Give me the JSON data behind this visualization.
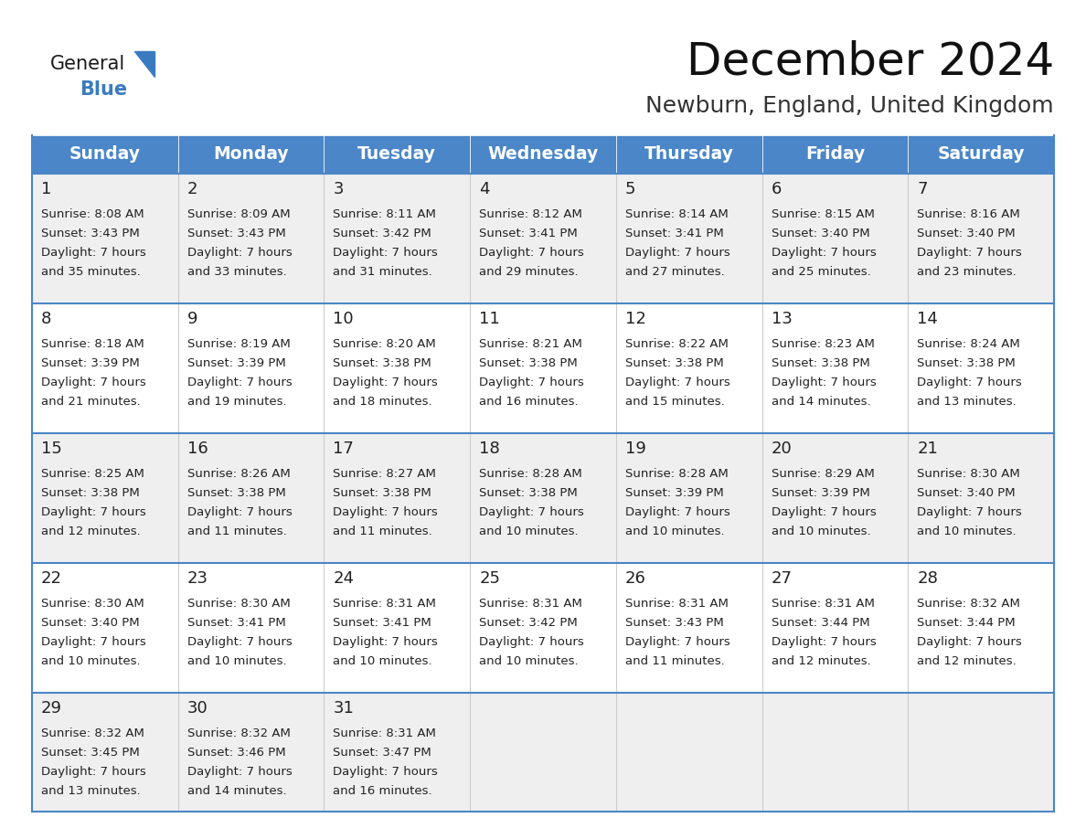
{
  "title": "December 2024",
  "subtitle": "Newburn, England, United Kingdom",
  "header_color": "#4a86c8",
  "header_text_color": "#ffffff",
  "row_bg_light": "#efefef",
  "row_bg_white": "#ffffff",
  "border_color": "#4a86c8",
  "text_color": "#222222",
  "days_of_week": [
    "Sunday",
    "Monday",
    "Tuesday",
    "Wednesday",
    "Thursday",
    "Friday",
    "Saturday"
  ],
  "logo_color1": "#1a1a1a",
  "logo_color2": "#3a7bbf",
  "calendar_data": [
    [
      {
        "day": 1,
        "sunrise": "8:08 AM",
        "sunset": "3:43 PM",
        "daylight_hours": 7,
        "daylight_min": "35 minutes."
      },
      {
        "day": 2,
        "sunrise": "8:09 AM",
        "sunset": "3:43 PM",
        "daylight_hours": 7,
        "daylight_min": "33 minutes."
      },
      {
        "day": 3,
        "sunrise": "8:11 AM",
        "sunset": "3:42 PM",
        "daylight_hours": 7,
        "daylight_min": "31 minutes."
      },
      {
        "day": 4,
        "sunrise": "8:12 AM",
        "sunset": "3:41 PM",
        "daylight_hours": 7,
        "daylight_min": "29 minutes."
      },
      {
        "day": 5,
        "sunrise": "8:14 AM",
        "sunset": "3:41 PM",
        "daylight_hours": 7,
        "daylight_min": "27 minutes."
      },
      {
        "day": 6,
        "sunrise": "8:15 AM",
        "sunset": "3:40 PM",
        "daylight_hours": 7,
        "daylight_min": "25 minutes."
      },
      {
        "day": 7,
        "sunrise": "8:16 AM",
        "sunset": "3:40 PM",
        "daylight_hours": 7,
        "daylight_min": "23 minutes."
      }
    ],
    [
      {
        "day": 8,
        "sunrise": "8:18 AM",
        "sunset": "3:39 PM",
        "daylight_hours": 7,
        "daylight_min": "21 minutes."
      },
      {
        "day": 9,
        "sunrise": "8:19 AM",
        "sunset": "3:39 PM",
        "daylight_hours": 7,
        "daylight_min": "19 minutes."
      },
      {
        "day": 10,
        "sunrise": "8:20 AM",
        "sunset": "3:38 PM",
        "daylight_hours": 7,
        "daylight_min": "18 minutes."
      },
      {
        "day": 11,
        "sunrise": "8:21 AM",
        "sunset": "3:38 PM",
        "daylight_hours": 7,
        "daylight_min": "16 minutes."
      },
      {
        "day": 12,
        "sunrise": "8:22 AM",
        "sunset": "3:38 PM",
        "daylight_hours": 7,
        "daylight_min": "15 minutes."
      },
      {
        "day": 13,
        "sunrise": "8:23 AM",
        "sunset": "3:38 PM",
        "daylight_hours": 7,
        "daylight_min": "14 minutes."
      },
      {
        "day": 14,
        "sunrise": "8:24 AM",
        "sunset": "3:38 PM",
        "daylight_hours": 7,
        "daylight_min": "13 minutes."
      }
    ],
    [
      {
        "day": 15,
        "sunrise": "8:25 AM",
        "sunset": "3:38 PM",
        "daylight_hours": 7,
        "daylight_min": "12 minutes."
      },
      {
        "day": 16,
        "sunrise": "8:26 AM",
        "sunset": "3:38 PM",
        "daylight_hours": 7,
        "daylight_min": "11 minutes."
      },
      {
        "day": 17,
        "sunrise": "8:27 AM",
        "sunset": "3:38 PM",
        "daylight_hours": 7,
        "daylight_min": "11 minutes."
      },
      {
        "day": 18,
        "sunrise": "8:28 AM",
        "sunset": "3:38 PM",
        "daylight_hours": 7,
        "daylight_min": "10 minutes."
      },
      {
        "day": 19,
        "sunrise": "8:28 AM",
        "sunset": "3:39 PM",
        "daylight_hours": 7,
        "daylight_min": "10 minutes."
      },
      {
        "day": 20,
        "sunrise": "8:29 AM",
        "sunset": "3:39 PM",
        "daylight_hours": 7,
        "daylight_min": "10 minutes."
      },
      {
        "day": 21,
        "sunrise": "8:30 AM",
        "sunset": "3:40 PM",
        "daylight_hours": 7,
        "daylight_min": "10 minutes."
      }
    ],
    [
      {
        "day": 22,
        "sunrise": "8:30 AM",
        "sunset": "3:40 PM",
        "daylight_hours": 7,
        "daylight_min": "10 minutes."
      },
      {
        "day": 23,
        "sunrise": "8:30 AM",
        "sunset": "3:41 PM",
        "daylight_hours": 7,
        "daylight_min": "10 minutes."
      },
      {
        "day": 24,
        "sunrise": "8:31 AM",
        "sunset": "3:41 PM",
        "daylight_hours": 7,
        "daylight_min": "10 minutes."
      },
      {
        "day": 25,
        "sunrise": "8:31 AM",
        "sunset": "3:42 PM",
        "daylight_hours": 7,
        "daylight_min": "10 minutes."
      },
      {
        "day": 26,
        "sunrise": "8:31 AM",
        "sunset": "3:43 PM",
        "daylight_hours": 7,
        "daylight_min": "11 minutes."
      },
      {
        "day": 27,
        "sunrise": "8:31 AM",
        "sunset": "3:44 PM",
        "daylight_hours": 7,
        "daylight_min": "12 minutes."
      },
      {
        "day": 28,
        "sunrise": "8:32 AM",
        "sunset": "3:44 PM",
        "daylight_hours": 7,
        "daylight_min": "12 minutes."
      }
    ],
    [
      {
        "day": 29,
        "sunrise": "8:32 AM",
        "sunset": "3:45 PM",
        "daylight_hours": 7,
        "daylight_min": "13 minutes."
      },
      {
        "day": 30,
        "sunrise": "8:32 AM",
        "sunset": "3:46 PM",
        "daylight_hours": 7,
        "daylight_min": "14 minutes."
      },
      {
        "day": 31,
        "sunrise": "8:31 AM",
        "sunset": "3:47 PM",
        "daylight_hours": 7,
        "daylight_min": "16 minutes."
      },
      null,
      null,
      null,
      null
    ]
  ]
}
